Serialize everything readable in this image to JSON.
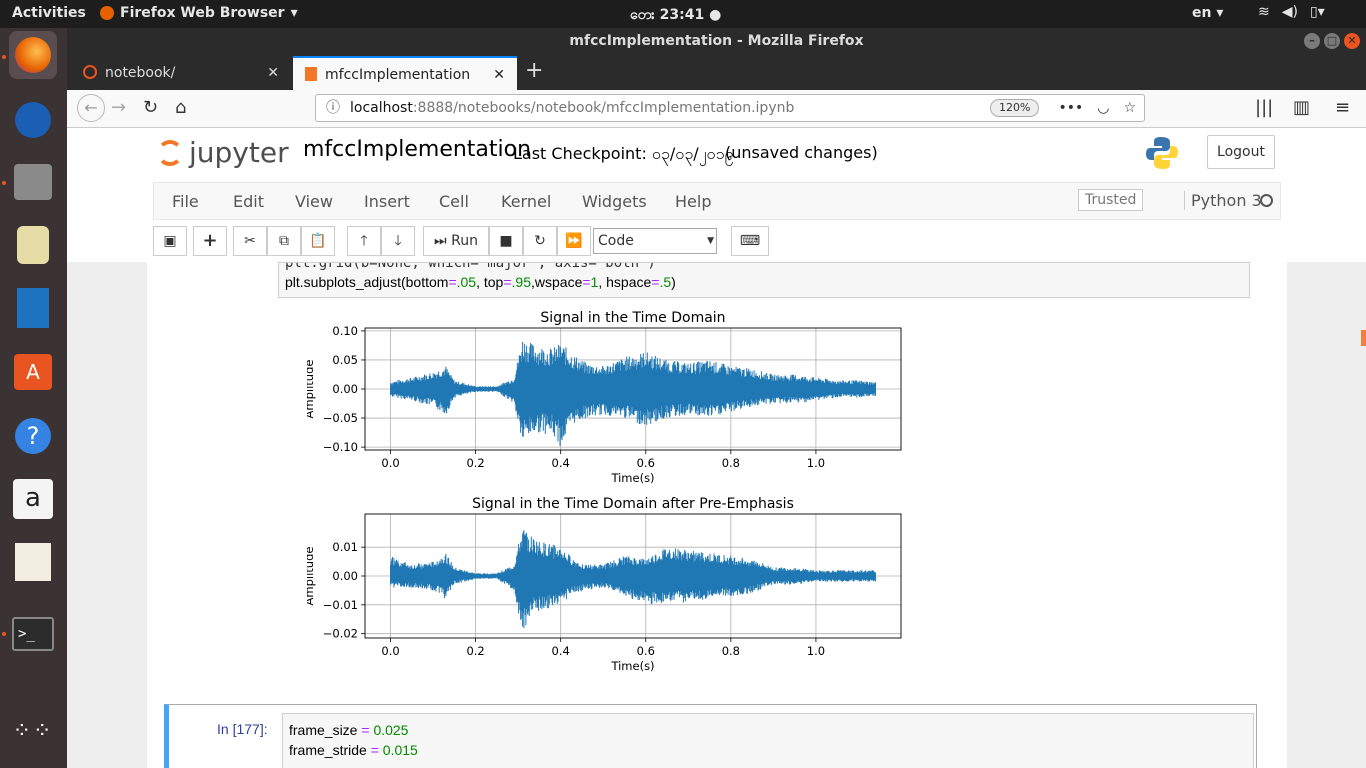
{
  "topbar": {
    "activities": "Activities",
    "app_name": "Firefox Web Browser",
    "clock": "တေး 23:41",
    "lang": "en"
  },
  "window": {
    "title": "mfccImplementation - Mozilla Firefox"
  },
  "tabs": [
    {
      "label": "notebook/"
    },
    {
      "label": "mfccImplementation"
    }
  ],
  "url": {
    "host": "localhost",
    "path": ":8888/notebooks/notebook/mfccImplementation.ipynb",
    "zoom": "120%"
  },
  "jupyter": {
    "logo": "jupyter",
    "notebook_title": "mfccImplementation",
    "checkpoint": "Last Checkpoint: ၀၃/၀၃/၂၀၁၉",
    "unsaved": "(unsaved changes)",
    "logout": "Logout",
    "menu": [
      "File",
      "Edit",
      "View",
      "Insert",
      "Cell",
      "Kernel",
      "Widgets",
      "Help"
    ],
    "trusted": "Trusted",
    "kernel": "Python 3",
    "run_label": "Run",
    "cell_type": "Code"
  },
  "prev_cell": {
    "line1": "plt.grid(b=None, which='major', axis='both')",
    "line2_prefix": "plt.subplots_adjust(bottom",
    "eq": "=",
    "bottom": ".05",
    "top_lbl": ", top",
    "top": ".95",
    "wspace_lbl": ",wspace",
    "wspace": "1",
    "hspace_lbl": ", hspace",
    "hspace": ".5",
    "close": ")"
  },
  "chart_data": [
    {
      "type": "line",
      "title": "Signal in the Time Domain",
      "xlabel": "Time(s)",
      "ylabel": "Amplitude",
      "xlim": [
        -0.06,
        1.2
      ],
      "ylim": [
        -0.105,
        0.105
      ],
      "xticks": [
        "0.0",
        "0.2",
        "0.4",
        "0.6",
        "0.8",
        "1.0"
      ],
      "yticks": [
        "0.10",
        "0.05",
        "0.00",
        "−0.05",
        "−0.10"
      ],
      "grid": true,
      "envelope": {
        "x": [
          0.0,
          0.05,
          0.1,
          0.13,
          0.15,
          0.2,
          0.25,
          0.29,
          0.31,
          0.33,
          0.35,
          0.38,
          0.4,
          0.43,
          0.46,
          0.5,
          0.55,
          0.6,
          0.65,
          0.7,
          0.75,
          0.8,
          0.85,
          0.9,
          0.95,
          1.0,
          1.05,
          1.1,
          1.14
        ],
        "upper": [
          0.013,
          0.02,
          0.03,
          0.04,
          0.015,
          0.005,
          0.005,
          0.02,
          0.09,
          0.08,
          0.075,
          0.07,
          0.08,
          0.06,
          0.045,
          0.04,
          0.055,
          0.065,
          0.05,
          0.045,
          0.05,
          0.04,
          0.035,
          0.025,
          0.025,
          0.02,
          0.015,
          0.015,
          0.012
        ],
        "lower": [
          -0.013,
          -0.02,
          -0.03,
          -0.045,
          -0.015,
          -0.005,
          -0.005,
          -0.025,
          -0.095,
          -0.08,
          -0.075,
          -0.08,
          -0.1,
          -0.06,
          -0.05,
          -0.045,
          -0.05,
          -0.065,
          -0.05,
          -0.045,
          -0.05,
          -0.04,
          -0.03,
          -0.025,
          -0.025,
          -0.02,
          -0.015,
          -0.015,
          -0.012
        ]
      }
    },
    {
      "type": "line",
      "title": "Signal in the Time Domain after Pre-Emphasis",
      "xlabel": "Time(s)",
      "ylabel": "Amplitude",
      "xlim": [
        -0.06,
        1.2
      ],
      "ylim": [
        -0.0215,
        0.0215
      ],
      "xticks": [
        "0.0",
        "0.2",
        "0.4",
        "0.6",
        "0.8",
        "1.0"
      ],
      "yticks": [
        "0.01",
        "0.00",
        "−0.01",
        "−0.02"
      ],
      "grid": true,
      "envelope": {
        "x": [
          0.0,
          0.05,
          0.1,
          0.13,
          0.15,
          0.2,
          0.25,
          0.29,
          0.31,
          0.33,
          0.35,
          0.38,
          0.4,
          0.43,
          0.46,
          0.5,
          0.55,
          0.6,
          0.65,
          0.7,
          0.75,
          0.8,
          0.85,
          0.9,
          0.95,
          1.0,
          1.05,
          1.1,
          1.14
        ],
        "upper": [
          0.007,
          0.004,
          0.005,
          0.008,
          0.003,
          0.001,
          0.001,
          0.004,
          0.017,
          0.014,
          0.012,
          0.011,
          0.01,
          0.006,
          0.004,
          0.004,
          0.007,
          0.006,
          0.01,
          0.009,
          0.008,
          0.007,
          0.006,
          0.003,
          0.003,
          0.002,
          0.002,
          0.002,
          0.002
        ],
        "lower": [
          -0.004,
          -0.004,
          -0.005,
          -0.008,
          -0.003,
          -0.001,
          -0.001,
          -0.005,
          -0.02,
          -0.014,
          -0.012,
          -0.011,
          -0.01,
          -0.006,
          -0.005,
          -0.004,
          -0.007,
          -0.01,
          -0.01,
          -0.009,
          -0.008,
          -0.007,
          -0.006,
          -0.003,
          -0.003,
          -0.002,
          -0.002,
          -0.002,
          -0.002
        ]
      }
    }
  ],
  "next_cell": {
    "prompt": "In [177]:",
    "line1_var": "frame_size",
    "line1_val": "0.025",
    "line2_var": "frame_stride",
    "line2_val": "0.015",
    "eq": "="
  },
  "colors": {
    "signal": "#1f77b4",
    "accent": "#f37726",
    "dock_bg": "#3a3233"
  }
}
